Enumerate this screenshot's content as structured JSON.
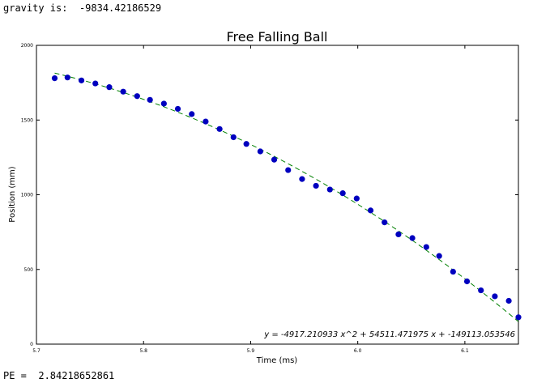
{
  "console": {
    "gravity_label": "gravity is:",
    "gravity_value": "-9834.42186529",
    "pe_label": "PE =",
    "pe_value": "2.84218652861"
  },
  "chart_data": {
    "type": "scatter",
    "title": "Free Falling Ball",
    "xlabel": "Time (ms)",
    "ylabel": "Position (mm)",
    "xlim": [
      5.7,
      6.15
    ],
    "ylim": [
      0,
      2000
    ],
    "xticks": [
      5.7,
      5.8,
      5.9,
      6.0,
      6.1
    ],
    "xtick_labels": [
      "5.7",
      "5.8",
      "5.9",
      "6.0",
      "6.1"
    ],
    "yticks": [
      0,
      500,
      1000,
      1500,
      2000
    ],
    "ytick_labels": [
      "0",
      "500",
      "1000",
      "1500",
      "2000"
    ],
    "grid": false,
    "equation": "y = -4917.210933 x^2 + 54511.471975 x + -149113.053546",
    "fit": {
      "a": -4917.210933,
      "b": 54511.471975,
      "c": -149113.053546,
      "x_range": [
        5.717,
        6.15
      ]
    },
    "colors": {
      "points": "#0000bf",
      "fit": "#008000"
    },
    "series": [
      {
        "x": [
          5.717,
          5.729,
          5.742,
          5.755,
          5.768,
          5.781,
          5.794,
          5.806,
          5.819,
          5.832,
          5.845,
          5.858,
          5.871,
          5.884,
          5.896,
          5.909,
          5.922,
          5.935,
          5.948,
          5.961,
          5.974,
          5.986,
          5.999,
          6.012,
          6.025,
          6.038,
          6.051,
          6.064,
          6.076,
          6.089,
          6.102,
          6.115,
          6.128,
          6.141,
          6.15
        ],
        "y": [
          1780,
          1785,
          1765,
          1745,
          1720,
          1690,
          1660,
          1635,
          1610,
          1575,
          1540,
          1490,
          1440,
          1385,
          1340,
          1290,
          1235,
          1165,
          1105,
          1060,
          1035,
          1010,
          975,
          895,
          815,
          735,
          710,
          650,
          590,
          485,
          420,
          360,
          320,
          290,
          180
        ]
      }
    ]
  }
}
